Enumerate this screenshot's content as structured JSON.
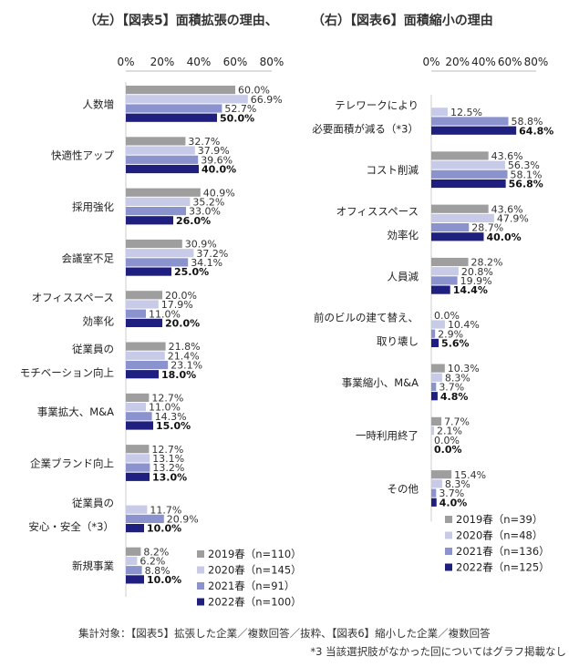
{
  "header": {
    "left_title": "（左）【図表5】面積拡張の理由、",
    "right_title": "（右）【図表6】面積縮小の理由"
  },
  "chart_data": [
    {
      "type": "bar",
      "orientation": "horizontal",
      "title": "【図表5】面積拡張の理由",
      "xlim": [
        0,
        80
      ],
      "xticks": [
        "0%",
        "20%",
        "40%",
        "60%",
        "80%"
      ],
      "categories": [
        [
          "人数増"
        ],
        [
          "快適性アップ"
        ],
        [
          "採用強化"
        ],
        [
          "会議室不足"
        ],
        [
          "オフィススペース",
          "効率化"
        ],
        [
          "従業員の",
          "モチベーション向上"
        ],
        [
          "事業拡大、M&A"
        ],
        [
          "企業ブランド向上"
        ],
        [
          "従業員の",
          "安心・安全（*3）"
        ],
        [
          "新規事業"
        ]
      ],
      "series": [
        {
          "name": "2019春（n=110）",
          "color": "#9e9e9e",
          "values": [
            60.0,
            32.7,
            40.9,
            30.9,
            20.0,
            21.8,
            12.7,
            12.7,
            null,
            8.2
          ]
        },
        {
          "name": "2020春（n=145）",
          "color": "#c8cbe8",
          "values": [
            66.9,
            37.9,
            35.2,
            37.2,
            17.9,
            21.4,
            11.0,
            13.1,
            11.7,
            6.2
          ]
        },
        {
          "name": "2021春（n=91）",
          "color": "#8b93cf",
          "values": [
            52.7,
            39.6,
            33.0,
            34.1,
            11.0,
            23.1,
            14.3,
            13.2,
            20.9,
            8.8
          ]
        },
        {
          "name": "2022春（n=100）",
          "color": "#1f1f80",
          "values": [
            50.0,
            40.0,
            26.0,
            25.0,
            20.0,
            18.0,
            15.0,
            13.0,
            10.0,
            10.0
          ]
        }
      ],
      "labels": [
        [
          "60.0%",
          "66.9%",
          "52.7%",
          "50.0%"
        ],
        [
          "32.7%",
          "37.9%",
          "39.6%",
          "40.0%"
        ],
        [
          "40.9%",
          "35.2%",
          "33.0%",
          "26.0%"
        ],
        [
          "30.9%",
          "37.2%",
          "34.1%",
          "25.0%"
        ],
        [
          "20.0%",
          "17.9%",
          "11.0%",
          "20.0%"
        ],
        [
          "21.8%",
          "21.4%",
          "23.1%",
          "18.0%"
        ],
        [
          "12.7%",
          "11.0%",
          "14.3%",
          "15.0%"
        ],
        [
          "12.7%",
          "13.1%",
          "13.2%",
          "13.0%"
        ],
        [
          "",
          "11.7%",
          "20.9%",
          "10.0%"
        ],
        [
          "8.2%",
          "6.2%",
          "8.8%",
          "10.0%"
        ]
      ],
      "legend": "bottom-right"
    },
    {
      "type": "bar",
      "orientation": "horizontal",
      "title": "【図表6】面積縮小の理由",
      "xlim": [
        0,
        80
      ],
      "xticks": [
        "0%",
        "20%",
        "40%",
        "60%",
        "80%"
      ],
      "categories": [
        [
          "テレワークにより",
          "必要面積が減る（*3）"
        ],
        [
          "コスト削減"
        ],
        [
          "オフィススペース",
          "効率化"
        ],
        [
          "人員減"
        ],
        [
          "前のビルの建て替え、",
          "取り壊し"
        ],
        [
          "事業縮小、M&A"
        ],
        [
          "一時利用終了"
        ],
        [
          "その他"
        ]
      ],
      "series": [
        {
          "name": "2019春（n=39）",
          "color": "#9e9e9e",
          "values": [
            null,
            43.6,
            43.6,
            28.2,
            0.0,
            10.3,
            7.7,
            15.4
          ]
        },
        {
          "name": "2020春（n=48）",
          "color": "#c8cbe8",
          "values": [
            12.5,
            56.3,
            47.9,
            20.8,
            10.4,
            8.3,
            2.1,
            8.3
          ]
        },
        {
          "name": "2021春（n=136）",
          "color": "#8b93cf",
          "values": [
            58.8,
            58.1,
            28.7,
            19.9,
            2.9,
            3.7,
            0.0,
            3.7
          ]
        },
        {
          "name": "2022春（n=125）",
          "color": "#1f1f80",
          "values": [
            64.8,
            56.8,
            40.0,
            14.4,
            5.6,
            4.8,
            0.0,
            4.0
          ]
        }
      ],
      "labels": [
        [
          "",
          "12.5%",
          "58.8%",
          "64.8%"
        ],
        [
          "43.6%",
          "56.3%",
          "58.1%",
          "56.8%"
        ],
        [
          "43.6%",
          "47.9%",
          "28.7%",
          "40.0%"
        ],
        [
          "28.2%",
          "20.8%",
          "19.9%",
          "14.4%"
        ],
        [
          "0.0%",
          "10.4%",
          "2.9%",
          "5.6%"
        ],
        [
          "10.3%",
          "8.3%",
          "3.7%",
          "4.8%"
        ],
        [
          "7.7%",
          "2.1%",
          "0.0%",
          "0.0%"
        ],
        [
          "15.4%",
          "8.3%",
          "3.7%",
          "4.0%"
        ]
      ],
      "legend": "bottom-right"
    }
  ],
  "footnote": {
    "line1": "集計対象：【図表5】拡張した企業／複数回答／抜粋、【図表6】縮小した企業／複数回答",
    "line2": "*3 当該選択肢がなかった回についてはグラフ掲載なし"
  }
}
